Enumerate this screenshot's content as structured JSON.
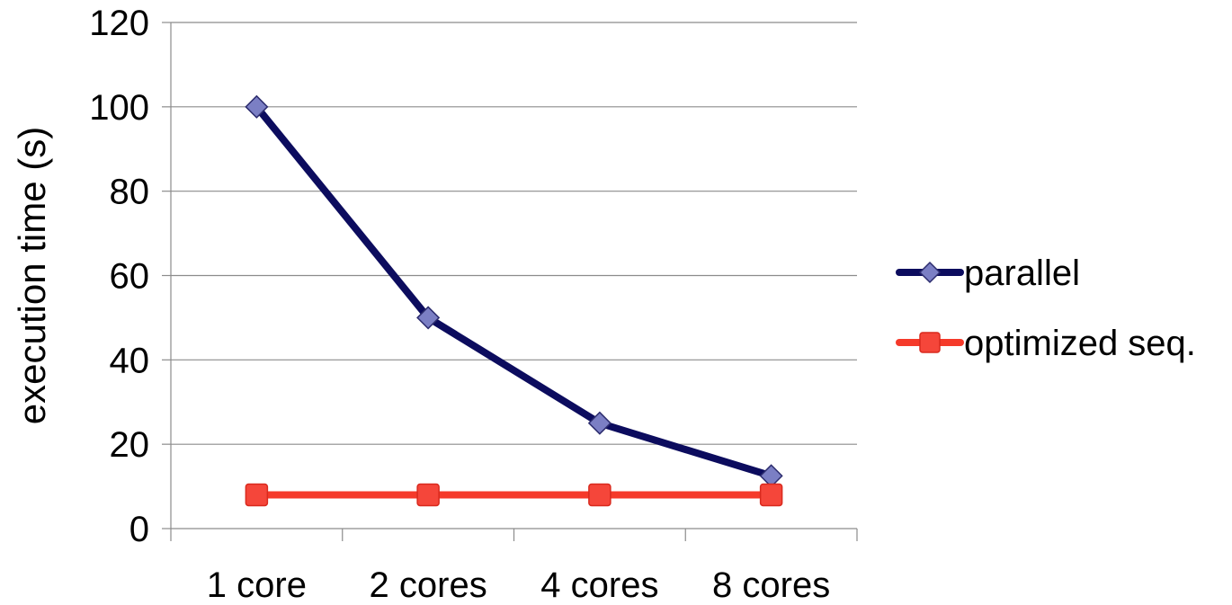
{
  "chart_data": {
    "type": "line",
    "categories": [
      "1 core",
      "2 cores",
      "4 cores",
      "8 cores"
    ],
    "series": [
      {
        "name": "parallel",
        "values": [
          100,
          50,
          25,
          12.5
        ],
        "color": "#0c0c5e",
        "marker": "diamond",
        "marker_color": "#7b7fc4"
      },
      {
        "name": "optimized seq.",
        "values": [
          8,
          8,
          8,
          8
        ],
        "color": "#f53a2a",
        "marker": "square",
        "marker_color": "#f5463a"
      }
    ],
    "title": "",
    "xlabel": "",
    "ylabel": "execution time (s)",
    "ylim": [
      0,
      120
    ],
    "yticks": [
      0,
      20,
      40,
      60,
      80,
      100,
      120
    ],
    "grid": true,
    "legend": "right"
  }
}
